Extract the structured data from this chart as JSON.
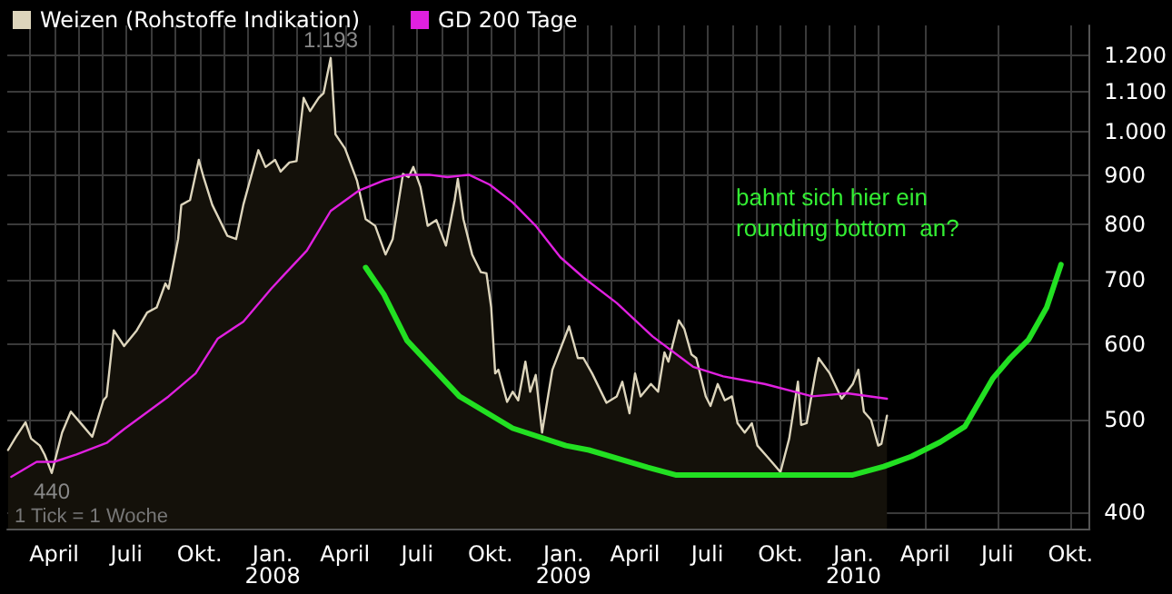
{
  "chart_data": {
    "type": "area",
    "legend": "top left",
    "grid": true,
    "log": "y",
    "marker": "none",
    "line_style": "solid",
    "xlim": [
      "2007-02-01",
      "2010-10-25"
    ],
    "ylim": [
      385,
      1290
    ],
    "yticks": [
      400,
      500,
      600,
      700,
      800,
      900,
      {
        "value": 1000,
        "label": "1.000"
      },
      {
        "value": 1100,
        "label": "1.100"
      },
      {
        "value": 1200,
        "label": "1.200"
      }
    ],
    "xticks": [
      {
        "value": "2007-03-01",
        "label": null
      },
      {
        "value": "2007-04-01",
        "label": "April"
      },
      {
        "value": "2007-05-01",
        "label": null
      },
      {
        "value": "2007-06-01",
        "label": null
      },
      {
        "value": "2007-07-01",
        "label": "Juli"
      },
      {
        "value": "2007-08-01",
        "label": null
      },
      {
        "value": "2007-09-01",
        "label": null
      },
      {
        "value": "2007-10-01",
        "label": "Okt."
      },
      {
        "value": "2007-11-01",
        "label": null
      },
      {
        "value": "2007-12-01",
        "label": null
      },
      {
        "value": "2008-01-01",
        "label": "Jan.\n2008"
      },
      {
        "value": "2008-02-01",
        "label": null
      },
      {
        "value": "2008-03-01",
        "label": null
      },
      {
        "value": "2008-04-01",
        "label": "April"
      },
      {
        "value": "2008-05-01",
        "label": null
      },
      {
        "value": "2008-06-01",
        "label": null
      },
      {
        "value": "2008-07-01",
        "label": "Juli"
      },
      {
        "value": "2008-08-01",
        "label": null
      },
      {
        "value": "2008-09-01",
        "label": null
      },
      {
        "value": "2008-10-01",
        "label": "Okt."
      },
      {
        "value": "2008-11-01",
        "label": null
      },
      {
        "value": "2008-12-01",
        "label": null
      },
      {
        "value": "2009-01-01",
        "label": "Jan.\n2009"
      },
      {
        "value": "2009-02-01",
        "label": null
      },
      {
        "value": "2009-03-01",
        "label": null
      },
      {
        "value": "2009-04-01",
        "label": "April"
      },
      {
        "value": "2009-05-01",
        "label": null
      },
      {
        "value": "2009-06-01",
        "label": null
      },
      {
        "value": "2009-07-01",
        "label": "Juli"
      },
      {
        "value": "2009-08-01",
        "label": null
      },
      {
        "value": "2009-09-01",
        "label": null
      },
      {
        "value": "2009-10-01",
        "label": "Okt."
      },
      {
        "value": "2009-11-01",
        "label": null
      },
      {
        "value": "2009-12-01",
        "label": null
      },
      {
        "value": "2010-01-01",
        "label": "Jan.\n2010"
      },
      {
        "value": "2010-02-01",
        "label": null
      },
      {
        "value": "2010-04-01",
        "label": "April"
      },
      {
        "value": "2010-07-01",
        "label": "Juli"
      },
      {
        "value": "2010-10-01",
        "label": "Okt."
      }
    ],
    "series": [
      {
        "name": "Weizen (Rohstoffe Indikation)",
        "color": "#ddd5bc",
        "x": [
          "2007-02-02",
          "2007-02-12",
          "2007-02-24",
          "2007-03-03",
          "2007-03-14",
          "2007-03-20",
          "2007-03-29",
          "2007-04-11",
          "2007-04-22",
          "2007-05-08",
          "2007-05-19",
          "2007-06-02",
          "2007-06-06",
          "2007-06-15",
          "2007-06-28",
          "2007-07-14",
          "2007-07-27",
          "2007-08-08",
          "2007-08-19",
          "2007-08-23",
          "2007-09-04",
          "2007-09-08",
          "2007-09-19",
          "2007-09-30",
          "2007-10-06",
          "2007-10-17",
          "2007-11-05",
          "2007-11-16",
          "2007-11-25",
          "2007-12-14",
          "2007-12-23",
          "2008-01-04",
          "2008-01-11",
          "2008-01-22",
          "2008-01-31",
          "2008-02-09",
          "2008-02-17",
          "2008-02-28",
          "2008-03-05",
          "2008-03-14",
          "2008-03-20",
          "2008-04-01",
          "2008-04-16",
          "2008-04-27",
          "2008-05-09",
          "2008-05-22",
          "2008-05-31",
          "2008-06-13",
          "2008-06-20",
          "2008-06-26",
          "2008-07-05",
          "2008-07-14",
          "2008-07-25",
          "2008-08-06",
          "2008-08-17",
          "2008-08-21",
          "2008-08-28",
          "2008-09-08",
          "2008-09-19",
          "2008-09-26",
          "2008-10-02",
          "2008-10-07",
          "2008-10-11",
          "2008-10-22",
          "2008-10-29",
          "2008-11-05",
          "2008-11-14",
          "2008-11-20",
          "2008-11-27",
          "2008-12-05",
          "2008-12-18",
          "2009-01-08",
          "2009-01-19",
          "2009-01-26",
          "2009-02-06",
          "2009-02-24",
          "2009-03-09",
          "2009-03-16",
          "2009-03-25",
          "2009-04-01",
          "2009-04-08",
          "2009-04-21",
          "2009-04-30",
          "2009-05-08",
          "2009-05-13",
          "2009-05-26",
          "2009-06-02",
          "2009-06-11",
          "2009-06-17",
          "2009-06-29",
          "2009-07-05",
          "2009-07-14",
          "2009-07-23",
          "2009-08-01",
          "2009-08-08",
          "2009-08-17",
          "2009-08-26",
          "2009-09-02",
          "2009-09-15",
          "2009-10-01",
          "2009-10-12",
          "2009-10-23",
          "2009-10-27",
          "2009-11-03",
          "2009-11-14",
          "2009-11-18",
          "2009-12-02",
          "2009-12-17",
          "2009-12-31",
          "2010-01-07",
          "2010-01-14",
          "2010-01-23",
          "2010-02-01",
          "2010-02-05",
          "2010-02-12"
        ],
        "values": [
          465,
          480,
          497,
          478,
          470,
          460,
          440,
          485,
          510,
          492,
          480,
          524,
          529,
          620,
          597,
          620,
          647,
          655,
          694,
          685,
          772,
          838,
          848,
          934,
          896,
          838,
          778,
          772,
          838,
          956,
          918,
          934,
          908,
          928,
          931,
          1084,
          1050,
          1084,
          1096,
          1193,
          993,
          960,
          889,
          810,
          797,
          744,
          772,
          903,
          896,
          918,
          875,
          797,
          808,
          760,
          848,
          892,
          810,
          744,
          713,
          711,
          655,
          559,
          564,
          522,
          535,
          524,
          575,
          535,
          557,
          485,
          564,
          626,
          580,
          580,
          559,
          521,
          529,
          548,
          508,
          559,
          529,
          545,
          535,
          588,
          575,
          635,
          622,
          585,
          580,
          529,
          517,
          545,
          524,
          529,
          496,
          485,
          496,
          470,
          457,
          441,
          478,
          548,
          494,
          496,
          559,
          580,
          559,
          526,
          545,
          564,
          510,
          500,
          470,
          472,
          505
        ]
      },
      {
        "name": "GD 200 Tage",
        "type": "line",
        "color": "#e020e0",
        "x": [
          "2007-02-06",
          "2007-03-10",
          "2007-04-01",
          "2007-04-29",
          "2007-06-06",
          "2007-06-28",
          "2007-08-23",
          "2007-09-26",
          "2007-10-24",
          "2007-11-25",
          "2007-12-30",
          "2008-01-15",
          "2008-02-13",
          "2008-03-14",
          "2008-04-19",
          "2008-05-20",
          "2008-06-18",
          "2008-07-16",
          "2008-08-08",
          "2008-09-04",
          "2008-09-30",
          "2008-10-29",
          "2008-11-27",
          "2008-12-28",
          "2009-01-26",
          "2009-03-09",
          "2009-04-23",
          "2009-06-13",
          "2009-07-21",
          "2009-09-11",
          "2009-11-10",
          "2009-12-24",
          "2010-02-12"
        ],
        "values": [
          436,
          452,
          452,
          460,
          473,
          489,
          529,
          559,
          608,
          633,
          685,
          708,
          751,
          826,
          868,
          889,
          901,
          901,
          896,
          901,
          880,
          843,
          797,
          739,
          704,
          662,
          611,
          568,
          555,
          545,
          529,
          533,
          526
        ]
      },
      {
        "type": "line",
        "color": "#22e022",
        "x": [
          "2008-04-27",
          "2008-05-20",
          "2008-06-18",
          "2008-08-23",
          "2008-10-29",
          "2009-01-04",
          "2009-02-02",
          "2009-04-17",
          "2009-05-22",
          "2009-12-31",
          "2010-02-08",
          "2010-03-15",
          "2010-04-20",
          "2010-05-21",
          "2010-06-25",
          "2010-07-17",
          "2010-08-09",
          "2010-09-01",
          "2010-09-19"
        ],
        "values": [
          721,
          676,
          605,
          529,
          490,
          470,
          465,
          446,
          438,
          438,
          447,
          458,
          474,
          492,
          552,
          580,
          606,
          655,
          726
        ]
      }
    ],
    "annotations": [
      {
        "text": "1.193",
        "x": "2008-03-14",
        "y": 1193
      },
      {
        "text": "440",
        "x": "2007-03-29",
        "y": 440
      },
      "1 Tick = 1 Woche",
      "bahnt sich hier ein\nrounding bottom  an?"
    ]
  }
}
